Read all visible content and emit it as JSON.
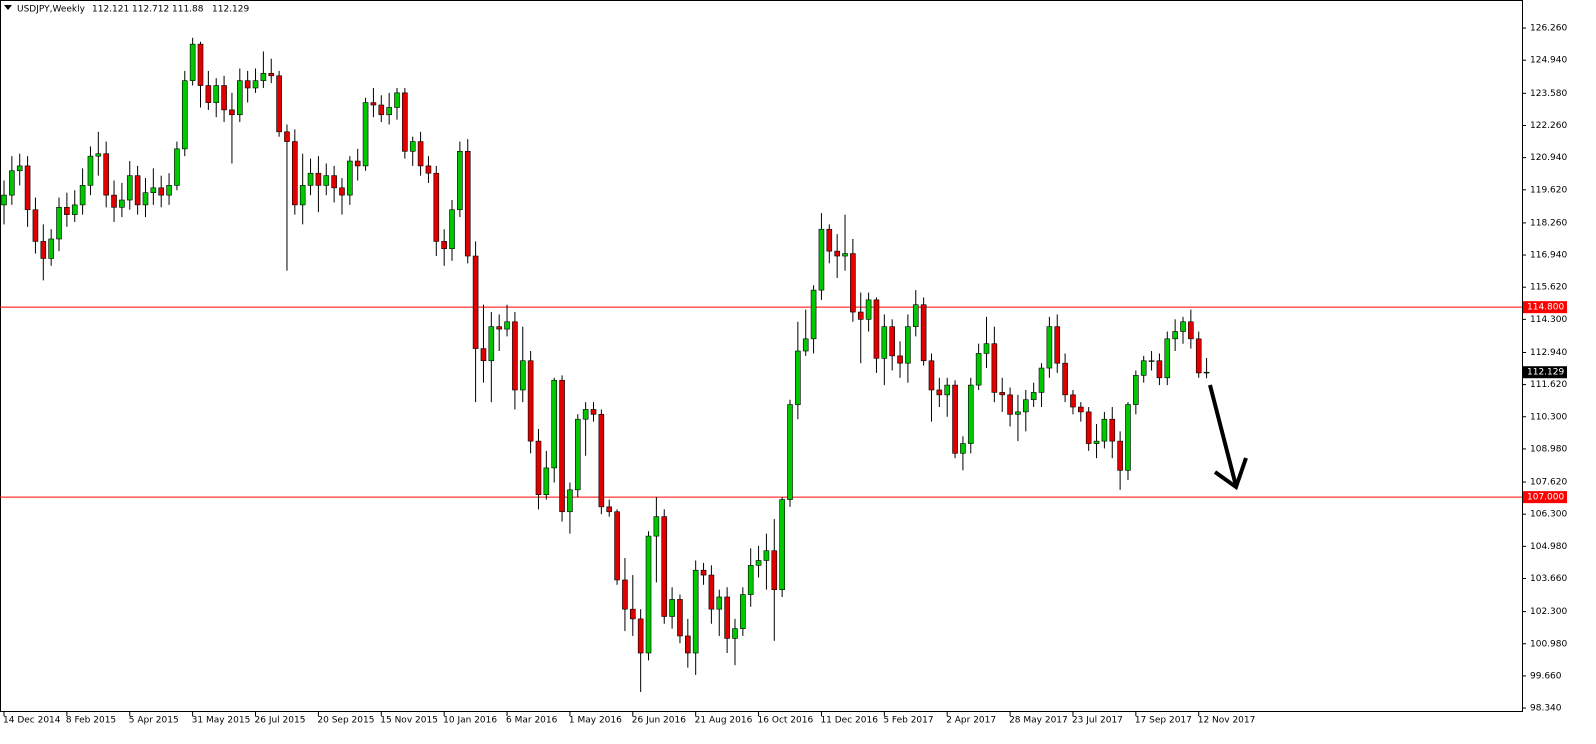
{
  "chart_data": {
    "type": "candlestick",
    "title": "USDJPY,Weekly",
    "up_color": "#00c800",
    "down_color": "#e00000",
    "outline_color": "#000000",
    "categories": [
      "14 Dec 2014",
      null,
      null,
      null,
      null,
      null,
      null,
      null,
      "8 Feb 2015",
      null,
      null,
      null,
      null,
      null,
      null,
      null,
      "5 Apr 2015",
      null,
      null,
      null,
      null,
      null,
      null,
      null,
      "31 May 2015",
      null,
      null,
      null,
      null,
      null,
      null,
      null,
      "26 Jul 2015",
      null,
      null,
      null,
      null,
      null,
      null,
      null,
      "20 Sep 2015",
      null,
      null,
      null,
      null,
      null,
      null,
      null,
      "15 Nov 2015",
      null,
      null,
      null,
      null,
      null,
      null,
      null,
      "10 Jan 2016",
      null,
      null,
      null,
      null,
      null,
      null,
      null,
      "6 Mar 2016",
      null,
      null,
      null,
      null,
      null,
      null,
      null,
      "1 May 2016",
      null,
      null,
      null,
      null,
      null,
      null,
      null,
      "26 Jun 2016",
      null,
      null,
      null,
      null,
      null,
      null,
      null,
      "21 Aug 2016",
      null,
      null,
      null,
      null,
      null,
      null,
      null,
      "16 Oct 2016",
      null,
      null,
      null,
      null,
      null,
      null,
      null,
      "11 Dec 2016",
      null,
      null,
      null,
      null,
      null,
      null,
      null,
      "5 Feb 2017",
      null,
      null,
      null,
      null,
      null,
      null,
      null,
      "2 Apr 2017",
      null,
      null,
      null,
      null,
      null,
      null,
      null,
      "28 May 2017",
      null,
      null,
      null,
      null,
      null,
      null,
      null,
      "23 Jul 2017",
      null,
      null,
      null,
      null,
      null,
      null,
      null,
      "17 Sep 2017",
      null,
      null,
      null,
      null,
      null,
      null,
      null,
      "12 Nov 2017",
      null
    ],
    "open": [
      119.0,
      119.4,
      120.4,
      120.6,
      118.8,
      117.5,
      116.8,
      117.6,
      118.9,
      118.6,
      119.0,
      119.8,
      121.0,
      121.1,
      119.4,
      118.9,
      119.2,
      120.2,
      119.0,
      119.5,
      119.7,
      119.4,
      119.8,
      121.3,
      124.1,
      125.6,
      123.9,
      123.2,
      123.9,
      122.9,
      122.7,
      124.1,
      123.8,
      124.1,
      124.4,
      124.3,
      122.0,
      121.6,
      119.0,
      119.8,
      120.3,
      119.8,
      120.2,
      119.7,
      119.4,
      120.8,
      120.6,
      123.2,
      123.1,
      122.7,
      123.0,
      123.6,
      121.2,
      121.6,
      120.6,
      120.3,
      117.5,
      117.2,
      118.8,
      121.2,
      116.9,
      113.1,
      112.6,
      114.0,
      113.9,
      114.2,
      111.4,
      112.6,
      109.3,
      107.1,
      108.2,
      111.8,
      106.4,
      107.3,
      110.2,
      110.6,
      110.4,
      106.6,
      106.4,
      103.6,
      102.4,
      102.0,
      100.6,
      105.4,
      106.2,
      102.1,
      102.8,
      101.3,
      100.6,
      104.0,
      103.8,
      102.4,
      102.9,
      101.2,
      101.6,
      103.0,
      104.2,
      104.4,
      104.8,
      103.2,
      106.9,
      110.8,
      113.0,
      113.5,
      115.5,
      118.0,
      117.1,
      116.9,
      117.0,
      114.6,
      114.3,
      115.1,
      112.7,
      114.0,
      112.8,
      112.5,
      114.0,
      114.9,
      112.6,
      111.4,
      111.2,
      111.6,
      108.8,
      109.2,
      111.6,
      112.9,
      113.3,
      111.3,
      111.2,
      110.4,
      110.5,
      111.0,
      111.3,
      112.3,
      114.0,
      112.5,
      111.2,
      110.7,
      110.5,
      109.2,
      109.3,
      110.2,
      109.3,
      108.1,
      110.8,
      112.0,
      112.6,
      112.6,
      111.9,
      113.5,
      113.8,
      114.2,
      113.5,
      112.121
    ],
    "high": [
      120.0,
      121.0,
      121.1,
      121.0,
      119.3,
      118.2,
      118.0,
      119.3,
      119.5,
      119.6,
      120.5,
      121.4,
      122.0,
      121.6,
      120.0,
      119.9,
      120.8,
      120.6,
      120.1,
      120.5,
      120.2,
      120.3,
      121.6,
      124.5,
      125.86,
      125.7,
      124.5,
      124.2,
      124.3,
      123.6,
      124.6,
      124.5,
      124.6,
      125.3,
      125.0,
      124.5,
      122.3,
      122.1,
      121.1,
      120.9,
      121.0,
      120.7,
      120.6,
      120.1,
      121.0,
      121.3,
      123.4,
      123.8,
      123.5,
      123.6,
      123.8,
      123.8,
      121.8,
      122.0,
      121.0,
      120.6,
      118.0,
      119.2,
      121.6,
      121.7,
      117.5,
      114.9,
      114.6,
      114.5,
      114.9,
      114.6,
      114.0,
      113.0,
      109.8,
      108.9,
      111.9,
      112.0,
      107.6,
      110.4,
      110.9,
      110.9,
      110.6,
      106.9,
      106.5,
      104.5,
      103.8,
      102.4,
      105.6,
      107.0,
      106.5,
      103.3,
      103.0,
      102.0,
      104.4,
      104.3,
      104.2,
      103.2,
      103.3,
      102.0,
      103.3,
      104.9,
      105.0,
      105.5,
      106.1,
      107.0,
      111.0,
      114.2,
      114.7,
      115.7,
      118.66,
      118.2,
      117.8,
      118.6,
      117.6,
      115.4,
      115.4,
      115.2,
      114.5,
      114.3,
      113.4,
      114.5,
      115.5,
      115.2,
      112.9,
      111.9,
      111.9,
      111.8,
      109.5,
      111.9,
      113.3,
      114.4,
      114.0,
      111.9,
      111.5,
      111.2,
      111.4,
      111.7,
      112.5,
      114.4,
      114.5,
      112.9,
      111.4,
      110.9,
      110.7,
      110.0,
      110.5,
      110.7,
      109.7,
      110.9,
      112.2,
      112.8,
      113.0,
      112.9,
      113.8,
      114.3,
      114.4,
      114.7,
      113.8,
      112.712
    ],
    "low": [
      118.2,
      119.0,
      119.8,
      118.1,
      117.0,
      115.9,
      116.5,
      117.1,
      118.1,
      118.3,
      118.6,
      119.4,
      120.2,
      118.9,
      118.3,
      118.5,
      118.8,
      118.6,
      118.5,
      119.0,
      118.9,
      119.0,
      119.6,
      121.0,
      123.9,
      123.0,
      122.9,
      122.6,
      122.4,
      120.7,
      122.4,
      123.2,
      123.6,
      123.8,
      124.0,
      121.8,
      116.3,
      118.6,
      118.2,
      119.4,
      118.7,
      119.4,
      119.1,
      118.6,
      119.0,
      120.0,
      120.4,
      122.6,
      122.4,
      122.3,
      122.5,
      120.9,
      120.6,
      120.2,
      119.9,
      116.9,
      116.5,
      116.7,
      118.5,
      116.6,
      110.9,
      111.7,
      110.9,
      113.0,
      113.6,
      110.6,
      110.9,
      108.8,
      106.5,
      106.9,
      107.6,
      106.0,
      105.5,
      107.0,
      108.7,
      110.1,
      106.3,
      106.2,
      103.4,
      101.5,
      101.3,
      99.0,
      100.3,
      103.5,
      101.8,
      101.6,
      101.0,
      100.0,
      99.7,
      103.4,
      101.8,
      101.3,
      100.6,
      100.1,
      101.3,
      102.5,
      103.7,
      103.2,
      101.1,
      102.9,
      106.6,
      110.2,
      112.8,
      112.9,
      115.1,
      116.6,
      116.0,
      116.3,
      114.2,
      112.5,
      113.8,
      112.1,
      111.6,
      112.2,
      111.9,
      111.7,
      113.6,
      112.4,
      110.1,
      110.7,
      110.3,
      108.6,
      108.1,
      108.8,
      111.4,
      112.3,
      110.9,
      110.5,
      109.9,
      109.3,
      109.7,
      110.7,
      110.7,
      111.9,
      112.1,
      110.9,
      110.4,
      110.1,
      108.9,
      108.6,
      109.0,
      108.6,
      107.3,
      107.7,
      110.4,
      111.7,
      112.2,
      111.6,
      111.6,
      113.0,
      113.3,
      113.1,
      111.9,
      111.88
    ],
    "close": [
      119.4,
      120.4,
      120.6,
      118.8,
      117.5,
      116.8,
      117.6,
      118.9,
      118.6,
      119.0,
      119.8,
      121.0,
      121.1,
      119.4,
      118.9,
      119.2,
      120.2,
      119.0,
      119.5,
      119.7,
      119.4,
      119.8,
      121.3,
      124.1,
      125.6,
      123.9,
      123.2,
      123.9,
      122.9,
      122.7,
      124.1,
      123.8,
      124.1,
      124.4,
      124.3,
      122.0,
      121.6,
      119.0,
      119.8,
      120.3,
      119.8,
      120.2,
      119.7,
      119.4,
      120.8,
      120.6,
      123.2,
      123.1,
      122.7,
      123.0,
      123.6,
      121.2,
      121.6,
      120.6,
      120.3,
      117.5,
      117.2,
      118.8,
      121.2,
      116.9,
      113.1,
      112.6,
      114.0,
      113.9,
      114.2,
      111.4,
      112.6,
      109.3,
      107.1,
      108.2,
      111.8,
      106.4,
      107.3,
      110.2,
      110.6,
      110.4,
      106.6,
      106.4,
      103.6,
      102.4,
      102.0,
      100.6,
      105.4,
      106.2,
      102.1,
      102.8,
      101.3,
      100.6,
      104.0,
      103.8,
      102.4,
      102.9,
      101.2,
      101.6,
      103.0,
      104.2,
      104.4,
      104.8,
      103.2,
      106.9,
      110.8,
      113.0,
      113.5,
      115.5,
      118.0,
      117.1,
      116.9,
      117.0,
      114.6,
      114.3,
      115.1,
      112.7,
      114.0,
      112.8,
      112.5,
      114.0,
      114.9,
      112.6,
      111.4,
      111.2,
      111.6,
      108.8,
      109.2,
      111.6,
      112.9,
      113.3,
      111.3,
      111.2,
      110.4,
      110.5,
      111.0,
      111.3,
      112.3,
      114.0,
      112.5,
      111.2,
      110.7,
      110.5,
      109.2,
      109.3,
      110.2,
      109.3,
      108.1,
      110.8,
      112.0,
      112.6,
      112.6,
      111.9,
      113.5,
      113.8,
      114.2,
      113.5,
      112.1,
      112.129
    ],
    "ylim": [
      98.26,
      127.33
    ],
    "yticks": [
      {
        "value": 126.26,
        "label": "126.260"
      },
      {
        "value": 124.94,
        "label": "124.940"
      },
      {
        "value": 123.58,
        "label": "123.580"
      },
      {
        "value": 122.26,
        "label": "122.260"
      },
      {
        "value": 120.94,
        "label": "120.940"
      },
      {
        "value": 119.62,
        "label": "119.620"
      },
      {
        "value": 118.26,
        "label": "118.260"
      },
      {
        "value": 116.94,
        "label": "116.940"
      },
      {
        "value": 115.62,
        "label": "115.620"
      },
      {
        "value": 114.3,
        "label": "114.300"
      },
      {
        "value": 112.94,
        "label": "112.940"
      },
      {
        "value": 111.62,
        "label": "111.620"
      },
      {
        "value": 110.3,
        "label": "110.300"
      },
      {
        "value": 108.98,
        "label": "108.980"
      },
      {
        "value": 107.62,
        "label": "107.620"
      },
      {
        "value": 106.3,
        "label": "106.300"
      },
      {
        "value": 104.98,
        "label": "104.980"
      },
      {
        "value": 103.66,
        "label": "103.660"
      },
      {
        "value": 102.3,
        "label": "102.300"
      },
      {
        "value": 100.98,
        "label": "100.980"
      },
      {
        "value": 99.66,
        "label": "99.660"
      },
      {
        "value": 98.34,
        "label": "98.340"
      }
    ],
    "hlines": [
      {
        "value": 114.8,
        "label": "114.800"
      },
      {
        "value": 107,
        "label": "107.000"
      }
    ],
    "hline_color": "#ff0000",
    "grid": false
  }
}
